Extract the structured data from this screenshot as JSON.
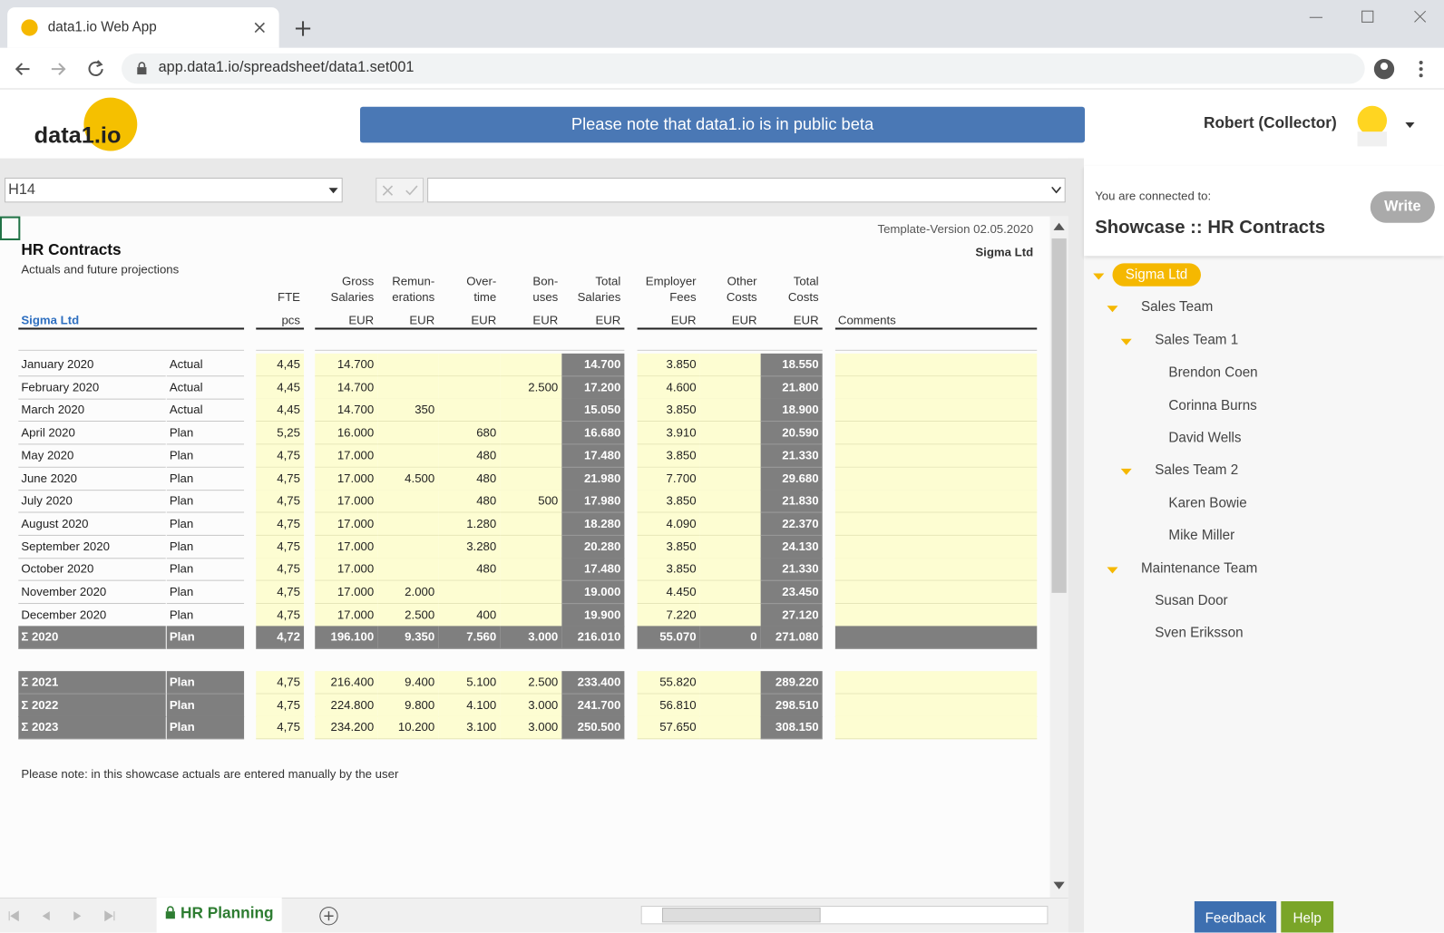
{
  "browser": {
    "tab_title": "data1.io Web App",
    "url": "app.data1.io/spreadsheet/data1.set001"
  },
  "header": {
    "logo": "data1.io",
    "banner": "Please note that data1.io is in public beta",
    "user": "Robert (Collector)"
  },
  "formula_bar": {
    "cell_ref": "H14"
  },
  "sheet": {
    "template_version": "Template-Version 02.05.2020",
    "company": "Sigma Ltd",
    "title": "HR Contracts",
    "subtitle": "Actuals and future projections",
    "entity_link": "Sigma Ltd",
    "columns": [
      {
        "header": [
          "FTE"
        ],
        "unit": "pcs"
      },
      {
        "header": [
          "Gross",
          "Salaries"
        ],
        "unit": "EUR"
      },
      {
        "header": [
          "Remun-",
          "erations"
        ],
        "unit": "EUR"
      },
      {
        "header": [
          "Over-",
          "time"
        ],
        "unit": "EUR"
      },
      {
        "header": [
          "Bon-",
          "uses"
        ],
        "unit": "EUR"
      },
      {
        "header": [
          "Total",
          "Salaries"
        ],
        "unit": "EUR"
      },
      {
        "header": [
          "Employer",
          "Fees"
        ],
        "unit": "EUR"
      },
      {
        "header": [
          "Other",
          "Costs"
        ],
        "unit": "EUR"
      },
      {
        "header": [
          "Total",
          "Costs"
        ],
        "unit": "EUR"
      }
    ],
    "comments_header": "Comments",
    "rows": [
      {
        "label": "January 2020",
        "status": "Actual",
        "values": [
          "4,45",
          "14.700",
          null,
          null,
          null,
          "14.700",
          "3.850",
          null,
          "18.550"
        ]
      },
      {
        "label": "February 2020",
        "status": "Actual",
        "values": [
          "4,45",
          "14.700",
          null,
          null,
          "2.500",
          "17.200",
          "4.600",
          null,
          "21.800"
        ]
      },
      {
        "label": "March 2020",
        "status": "Actual",
        "values": [
          "4,45",
          "14.700",
          "350",
          null,
          null,
          "15.050",
          "3.850",
          null,
          "18.900"
        ]
      },
      {
        "label": "April 2020",
        "status": "Plan",
        "values": [
          "5,25",
          "16.000",
          null,
          "680",
          null,
          "16.680",
          "3.910",
          null,
          "20.590"
        ]
      },
      {
        "label": "May 2020",
        "status": "Plan",
        "values": [
          "4,75",
          "17.000",
          null,
          "480",
          null,
          "17.480",
          "3.850",
          null,
          "21.330"
        ]
      },
      {
        "label": "June 2020",
        "status": "Plan",
        "values": [
          "4,75",
          "17.000",
          "4.500",
          "480",
          null,
          "21.980",
          "7.700",
          null,
          "29.680"
        ]
      },
      {
        "label": "July 2020",
        "status": "Plan",
        "values": [
          "4,75",
          "17.000",
          null,
          "480",
          "500",
          "17.980",
          "3.850",
          null,
          "21.830"
        ]
      },
      {
        "label": "August 2020",
        "status": "Plan",
        "values": [
          "4,75",
          "17.000",
          null,
          "1.280",
          null,
          "18.280",
          "4.090",
          null,
          "22.370"
        ]
      },
      {
        "label": "September 2020",
        "status": "Plan",
        "values": [
          "4,75",
          "17.000",
          null,
          "3.280",
          null,
          "20.280",
          "3.850",
          null,
          "24.130"
        ]
      },
      {
        "label": "October 2020",
        "status": "Plan",
        "values": [
          "4,75",
          "17.000",
          null,
          "480",
          null,
          "17.480",
          "3.850",
          null,
          "21.330"
        ]
      },
      {
        "label": "November 2020",
        "status": "Plan",
        "values": [
          "4,75",
          "17.000",
          "2.000",
          null,
          null,
          "19.000",
          "4.450",
          null,
          "23.450"
        ]
      },
      {
        "label": "December 2020",
        "status": "Plan",
        "values": [
          "4,75",
          "17.000",
          "2.500",
          "400",
          null,
          "19.900",
          "7.220",
          null,
          "27.120"
        ]
      }
    ],
    "year_total": {
      "label": "Σ 2020",
      "status": "Plan",
      "values": [
        "4,72",
        "196.100",
        "9.350",
        "7.560",
        "3.000",
        "216.010",
        "55.070",
        "0",
        "271.080"
      ]
    },
    "future_totals": [
      {
        "label": "Σ 2021",
        "status": "Plan",
        "values": [
          "4,75",
          "216.400",
          "9.400",
          "5.100",
          "2.500",
          "233.400",
          "55.820",
          null,
          "289.220"
        ]
      },
      {
        "label": "Σ 2022",
        "status": "Plan",
        "values": [
          "4,75",
          "224.800",
          "9.800",
          "4.100",
          "3.000",
          "241.700",
          "56.810",
          null,
          "298.510"
        ]
      },
      {
        "label": "Σ 2023",
        "status": "Plan",
        "values": [
          "4,75",
          "234.200",
          "10.200",
          "3.100",
          "3.000",
          "250.500",
          "57.650",
          null,
          "308.150"
        ]
      }
    ],
    "note": "Please note: in this showcase actuals are entered manually by the user"
  },
  "side_panel": {
    "connected_label": "You are connected to:",
    "connection": "Showcase :: HR Contracts",
    "write_button": "Write",
    "tree": {
      "label": "Sigma Ltd",
      "children": [
        {
          "label": "Sales Team",
          "children": [
            {
              "label": "Sales Team 1",
              "children": [
                {
                  "label": "Brendon Coen"
                },
                {
                  "label": "Corinna Burns"
                },
                {
                  "label": "David Wells"
                }
              ]
            },
            {
              "label": "Sales Team 2",
              "children": [
                {
                  "label": "Karen Bowie"
                },
                {
                  "label": "Mike Miller"
                }
              ]
            }
          ]
        },
        {
          "label": "Maintenance Team",
          "children": [
            {
              "label": "Susan Door"
            },
            {
              "label": "Sven Eriksson"
            }
          ]
        }
      ]
    }
  },
  "sheet_tab": "HR Planning",
  "buttons": {
    "feedback": "Feedback",
    "help": "Help"
  }
}
